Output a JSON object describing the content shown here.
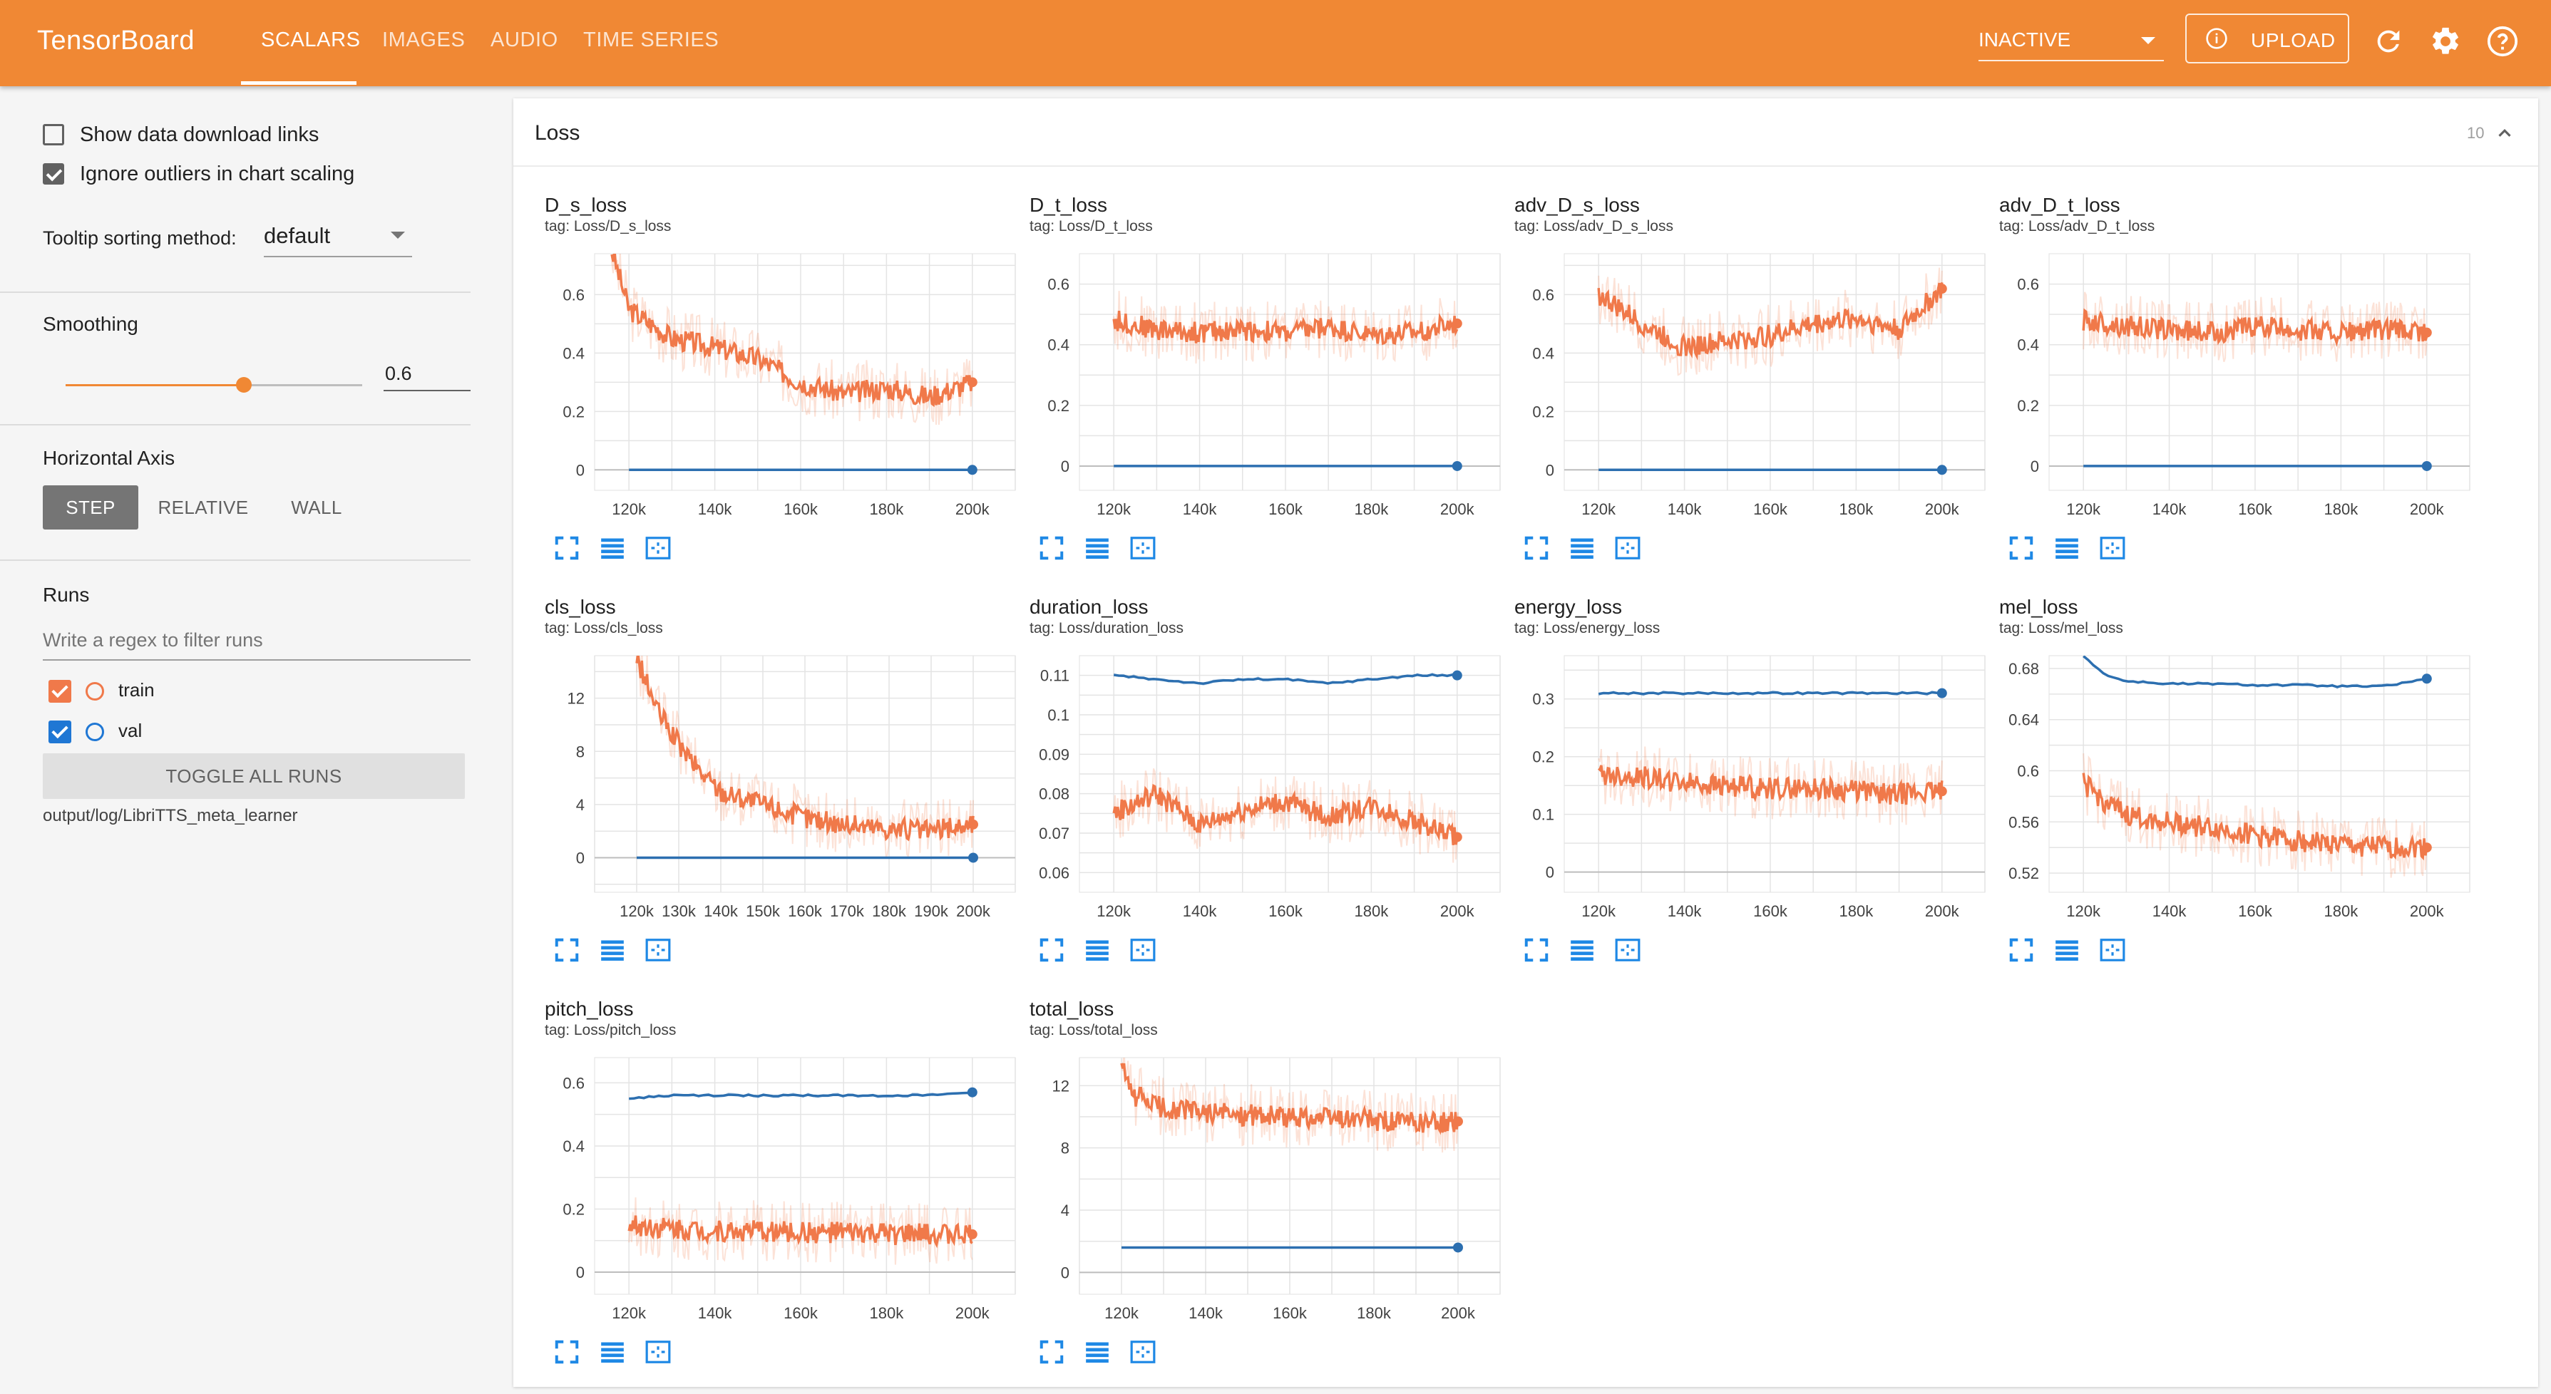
{
  "header": {
    "brand": "TensorBoard",
    "tabs": [
      {
        "label": "SCALARS",
        "active": true
      },
      {
        "label": "IMAGES",
        "active": false
      },
      {
        "label": "AUDIO",
        "active": false
      },
      {
        "label": "TIME SERIES",
        "active": false
      }
    ],
    "status": "INACTIVE",
    "upload_label": "UPLOAD",
    "icons": [
      "info-icon",
      "refresh-icon",
      "settings-icon",
      "help-icon"
    ]
  },
  "sidebar": {
    "show_download_links": {
      "label": "Show data download links",
      "checked": false
    },
    "ignore_outliers": {
      "label": "Ignore outliers in chart scaling",
      "checked": true
    },
    "tooltip_label": "Tooltip sorting method:",
    "tooltip_value": "default",
    "smoothing_label": "Smoothing",
    "smoothing_value": "0.6",
    "smoothing_fraction": 0.6,
    "axis_label": "Horizontal Axis",
    "axis_options": [
      "STEP",
      "RELATIVE",
      "WALL"
    ],
    "axis_selected": "STEP",
    "runs_label": "Runs",
    "runs_filter_placeholder": "Write a regex to filter runs",
    "runs": [
      {
        "name": "train",
        "color": "#f0794a",
        "checked": true
      },
      {
        "name": "val",
        "color": "#1f77d4",
        "checked": true
      }
    ],
    "toggle_all_label": "TOGGLE ALL RUNS",
    "log_dir": "output/log/LibriTTS_meta_learner"
  },
  "colors": {
    "accent": "#f08834",
    "train": "#f0794a",
    "val": "#2c6fb0"
  },
  "main": {
    "group_title": "Loss",
    "group_count": "10"
  },
  "chart_data": [
    {
      "type": "line",
      "title": "D_s_loss",
      "tag": "tag: Loss/D_s_loss",
      "xticks": [
        "120k",
        "140k",
        "160k",
        "180k",
        "200k"
      ],
      "xlim": [
        112000,
        210000
      ],
      "yticks": [
        "0",
        "0.2",
        "0.4",
        "0.6"
      ],
      "ylim": [
        -0.07,
        0.74
      ],
      "series": [
        {
          "name": "train",
          "x": [
            116000,
            120000,
            125000,
            130000,
            140000,
            150000,
            160000,
            170000,
            180000,
            190000,
            200000
          ],
          "y": [
            0.75,
            0.55,
            0.5,
            0.45,
            0.42,
            0.38,
            0.3,
            0.26,
            0.28,
            0.25,
            0.3
          ]
        },
        {
          "name": "val",
          "x": [
            120000,
            200000
          ],
          "y": [
            0,
            0
          ]
        }
      ]
    },
    {
      "type": "line",
      "title": "D_t_loss",
      "tag": "tag: Loss/D_t_loss",
      "xticks": [
        "120k",
        "140k",
        "160k",
        "180k",
        "200k"
      ],
      "xlim": [
        112000,
        210000
      ],
      "yticks": [
        "0",
        "0.2",
        "0.4",
        "0.6"
      ],
      "ylim": [
        -0.08,
        0.7
      ],
      "series": [
        {
          "name": "train",
          "x": [
            120000,
            130000,
            140000,
            150000,
            160000,
            170000,
            180000,
            190000,
            200000
          ],
          "y": [
            0.48,
            0.45,
            0.44,
            0.45,
            0.44,
            0.46,
            0.43,
            0.44,
            0.47
          ]
        },
        {
          "name": "val",
          "x": [
            120000,
            200000
          ],
          "y": [
            0,
            0
          ]
        }
      ]
    },
    {
      "type": "line",
      "title": "adv_D_s_loss",
      "tag": "tag: Loss/adv_D_s_loss",
      "xticks": [
        "120k",
        "140k",
        "160k",
        "180k",
        "200k"
      ],
      "xlim": [
        112000,
        210000
      ],
      "yticks": [
        "0",
        "0.2",
        "0.4",
        "0.6"
      ],
      "ylim": [
        -0.07,
        0.74
      ],
      "series": [
        {
          "name": "train",
          "x": [
            120000,
            130000,
            140000,
            150000,
            160000,
            170000,
            180000,
            190000,
            200000
          ],
          "y": [
            0.6,
            0.5,
            0.42,
            0.44,
            0.46,
            0.5,
            0.52,
            0.48,
            0.62
          ]
        },
        {
          "name": "val",
          "x": [
            120000,
            200000
          ],
          "y": [
            0,
            0
          ]
        }
      ]
    },
    {
      "type": "line",
      "title": "adv_D_t_loss",
      "tag": "tag: Loss/adv_D_t_loss",
      "xticks": [
        "120k",
        "140k",
        "160k",
        "180k",
        "200k"
      ],
      "xlim": [
        112000,
        210000
      ],
      "yticks": [
        "0",
        "0.2",
        "0.4",
        "0.6"
      ],
      "ylim": [
        -0.08,
        0.7
      ],
      "series": [
        {
          "name": "train",
          "x": [
            120000,
            130000,
            140000,
            150000,
            160000,
            170000,
            180000,
            190000,
            200000
          ],
          "y": [
            0.48,
            0.46,
            0.45,
            0.44,
            0.46,
            0.45,
            0.44,
            0.45,
            0.44
          ]
        },
        {
          "name": "val",
          "x": [
            120000,
            200000
          ],
          "y": [
            0,
            0
          ]
        }
      ]
    },
    {
      "type": "line",
      "title": "cls_loss",
      "tag": "tag: Loss/cls_loss",
      "xticks": [
        "120k",
        "130k",
        "140k",
        "150k",
        "160k",
        "170k",
        "180k",
        "190k",
        "200k"
      ],
      "xlim": [
        110000,
        210000
      ],
      "yticks": [
        "0",
        "4",
        "8",
        "12"
      ],
      "ylim": [
        -2.6,
        15.2
      ],
      "series": [
        {
          "name": "train",
          "x": [
            120000,
            125000,
            130000,
            135000,
            140000,
            150000,
            160000,
            170000,
            180000,
            190000,
            200000
          ],
          "y": [
            15,
            11,
            8.5,
            6.5,
            5,
            4,
            3,
            2.5,
            2.2,
            2,
            2.5
          ]
        },
        {
          "name": "val",
          "x": [
            120000,
            200000
          ],
          "y": [
            0,
            0
          ]
        }
      ]
    },
    {
      "type": "line",
      "title": "duration_loss",
      "tag": "tag: Loss/duration_loss",
      "xticks": [
        "120k",
        "140k",
        "160k",
        "180k",
        "200k"
      ],
      "xlim": [
        112000,
        210000
      ],
      "yticks": [
        "0.06",
        "0.07",
        "0.08",
        "0.09",
        "0.1",
        "0.11"
      ],
      "ylim": [
        0.055,
        0.115
      ],
      "series": [
        {
          "name": "train",
          "x": [
            120000,
            130000,
            140000,
            150000,
            160000,
            170000,
            180000,
            190000,
            200000
          ],
          "y": [
            0.075,
            0.08,
            0.072,
            0.076,
            0.078,
            0.074,
            0.077,
            0.073,
            0.069
          ]
        },
        {
          "name": "val",
          "x": [
            120000,
            130000,
            140000,
            150000,
            160000,
            170000,
            180000,
            190000,
            200000
          ],
          "y": [
            0.11,
            0.109,
            0.108,
            0.109,
            0.109,
            0.108,
            0.109,
            0.11,
            0.11
          ]
        }
      ]
    },
    {
      "type": "line",
      "title": "energy_loss",
      "tag": "tag: Loss/energy_loss",
      "xticks": [
        "120k",
        "140k",
        "160k",
        "180k",
        "200k"
      ],
      "xlim": [
        112000,
        210000
      ],
      "yticks": [
        "0",
        "0.1",
        "0.2",
        "0.3"
      ],
      "ylim": [
        -0.035,
        0.375
      ],
      "series": [
        {
          "name": "train",
          "x": [
            120000,
            130000,
            140000,
            150000,
            160000,
            170000,
            180000,
            190000,
            200000
          ],
          "y": [
            0.17,
            0.165,
            0.155,
            0.15,
            0.145,
            0.145,
            0.14,
            0.135,
            0.14
          ]
        },
        {
          "name": "val",
          "x": [
            120000,
            140000,
            160000,
            180000,
            200000
          ],
          "y": [
            0.31,
            0.31,
            0.31,
            0.31,
            0.31
          ]
        }
      ]
    },
    {
      "type": "line",
      "title": "mel_loss",
      "tag": "tag: Loss/mel_loss",
      "xticks": [
        "120k",
        "140k",
        "160k",
        "180k",
        "200k"
      ],
      "xlim": [
        112000,
        210000
      ],
      "yticks": [
        "0.52",
        "0.56",
        "0.6",
        "0.64",
        "0.68"
      ],
      "ylim": [
        0.505,
        0.69
      ],
      "series": [
        {
          "name": "train",
          "x": [
            120000,
            125000,
            130000,
            140000,
            150000,
            160000,
            170000,
            180000,
            190000,
            200000
          ],
          "y": [
            0.59,
            0.575,
            0.565,
            0.56,
            0.555,
            0.55,
            0.545,
            0.542,
            0.54,
            0.54
          ]
        },
        {
          "name": "val",
          "x": [
            120000,
            125000,
            130000,
            140000,
            150000,
            160000,
            170000,
            180000,
            190000,
            200000
          ],
          "y": [
            0.69,
            0.675,
            0.67,
            0.668,
            0.668,
            0.667,
            0.667,
            0.666,
            0.666,
            0.672
          ]
        }
      ]
    },
    {
      "type": "line",
      "title": "pitch_loss",
      "tag": "tag: Loss/pitch_loss",
      "xticks": [
        "120k",
        "140k",
        "160k",
        "180k",
        "200k"
      ],
      "xlim": [
        112000,
        210000
      ],
      "yticks": [
        "0",
        "0.2",
        "0.4",
        "0.6"
      ],
      "ylim": [
        -0.07,
        0.68
      ],
      "series": [
        {
          "name": "train",
          "x": [
            120000,
            130000,
            140000,
            150000,
            160000,
            170000,
            180000,
            190000,
            200000
          ],
          "y": [
            0.15,
            0.14,
            0.13,
            0.13,
            0.125,
            0.125,
            0.12,
            0.12,
            0.12
          ]
        },
        {
          "name": "val",
          "x": [
            120000,
            130000,
            140000,
            150000,
            160000,
            170000,
            180000,
            190000,
            200000
          ],
          "y": [
            0.55,
            0.56,
            0.56,
            0.56,
            0.56,
            0.56,
            0.56,
            0.56,
            0.57
          ]
        }
      ]
    },
    {
      "type": "line",
      "title": "total_loss",
      "tag": "tag: Loss/total_loss",
      "xticks": [
        "120k",
        "140k",
        "160k",
        "180k",
        "200k"
      ],
      "xlim": [
        110000,
        210000
      ],
      "yticks": [
        "0",
        "4",
        "8",
        "12"
      ],
      "ylim": [
        -1.4,
        13.8
      ],
      "series": [
        {
          "name": "train",
          "x": [
            120000,
            122000,
            130000,
            140000,
            150000,
            160000,
            170000,
            180000,
            190000,
            200000
          ],
          "y": [
            13.5,
            11.5,
            10.5,
            10.3,
            10.1,
            10,
            9.9,
            9.8,
            9.6,
            9.7
          ]
        },
        {
          "name": "val",
          "x": [
            120000,
            160000,
            200000
          ],
          "y": [
            1.6,
            1.6,
            1.6
          ]
        }
      ]
    }
  ]
}
